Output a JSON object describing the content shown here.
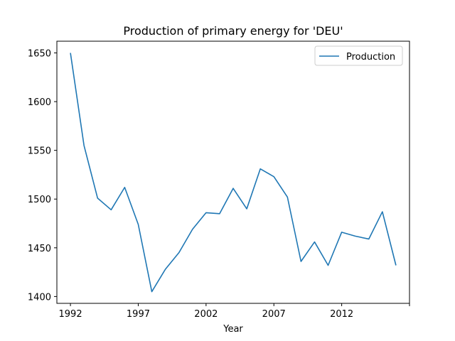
{
  "chart_data": {
    "type": "line",
    "title": "Production of primary energy for 'DEU'",
    "xlabel": "Year",
    "ylabel": "",
    "x": [
      1992,
      1993,
      1994,
      1995,
      1996,
      1997,
      1998,
      1999,
      2000,
      2001,
      2002,
      2003,
      2004,
      2005,
      2006,
      2007,
      2008,
      2009,
      2010,
      2011,
      2012,
      2013,
      2014,
      2015,
      2016
    ],
    "series": [
      {
        "name": "Production",
        "color": "#1f77b4",
        "values": [
          1650,
          1555,
          1501,
          1489,
          1512,
          1474,
          1405,
          1428,
          1445,
          1469,
          1486,
          1485,
          1511,
          1490,
          1531,
          1523,
          1502,
          1436,
          1456,
          1432,
          1466,
          1462,
          1459,
          1487,
          1432
        ]
      }
    ],
    "xlim": [
      1991,
      2017
    ],
    "ylim": [
      1393,
      1662
    ],
    "x_ticks": [
      1992,
      1997,
      2002,
      2007,
      2012,
      2017
    ],
    "x_tick_labels": [
      "1992",
      "1997",
      "2002",
      "2007",
      "2012",
      ""
    ],
    "y_ticks": [
      1400,
      1450,
      1500,
      1550,
      1600,
      1650
    ],
    "y_tick_labels": [
      "1400",
      "1450",
      "1500",
      "1550",
      "1600",
      "1650"
    ],
    "grid": false,
    "legend_position": "top-right"
  }
}
